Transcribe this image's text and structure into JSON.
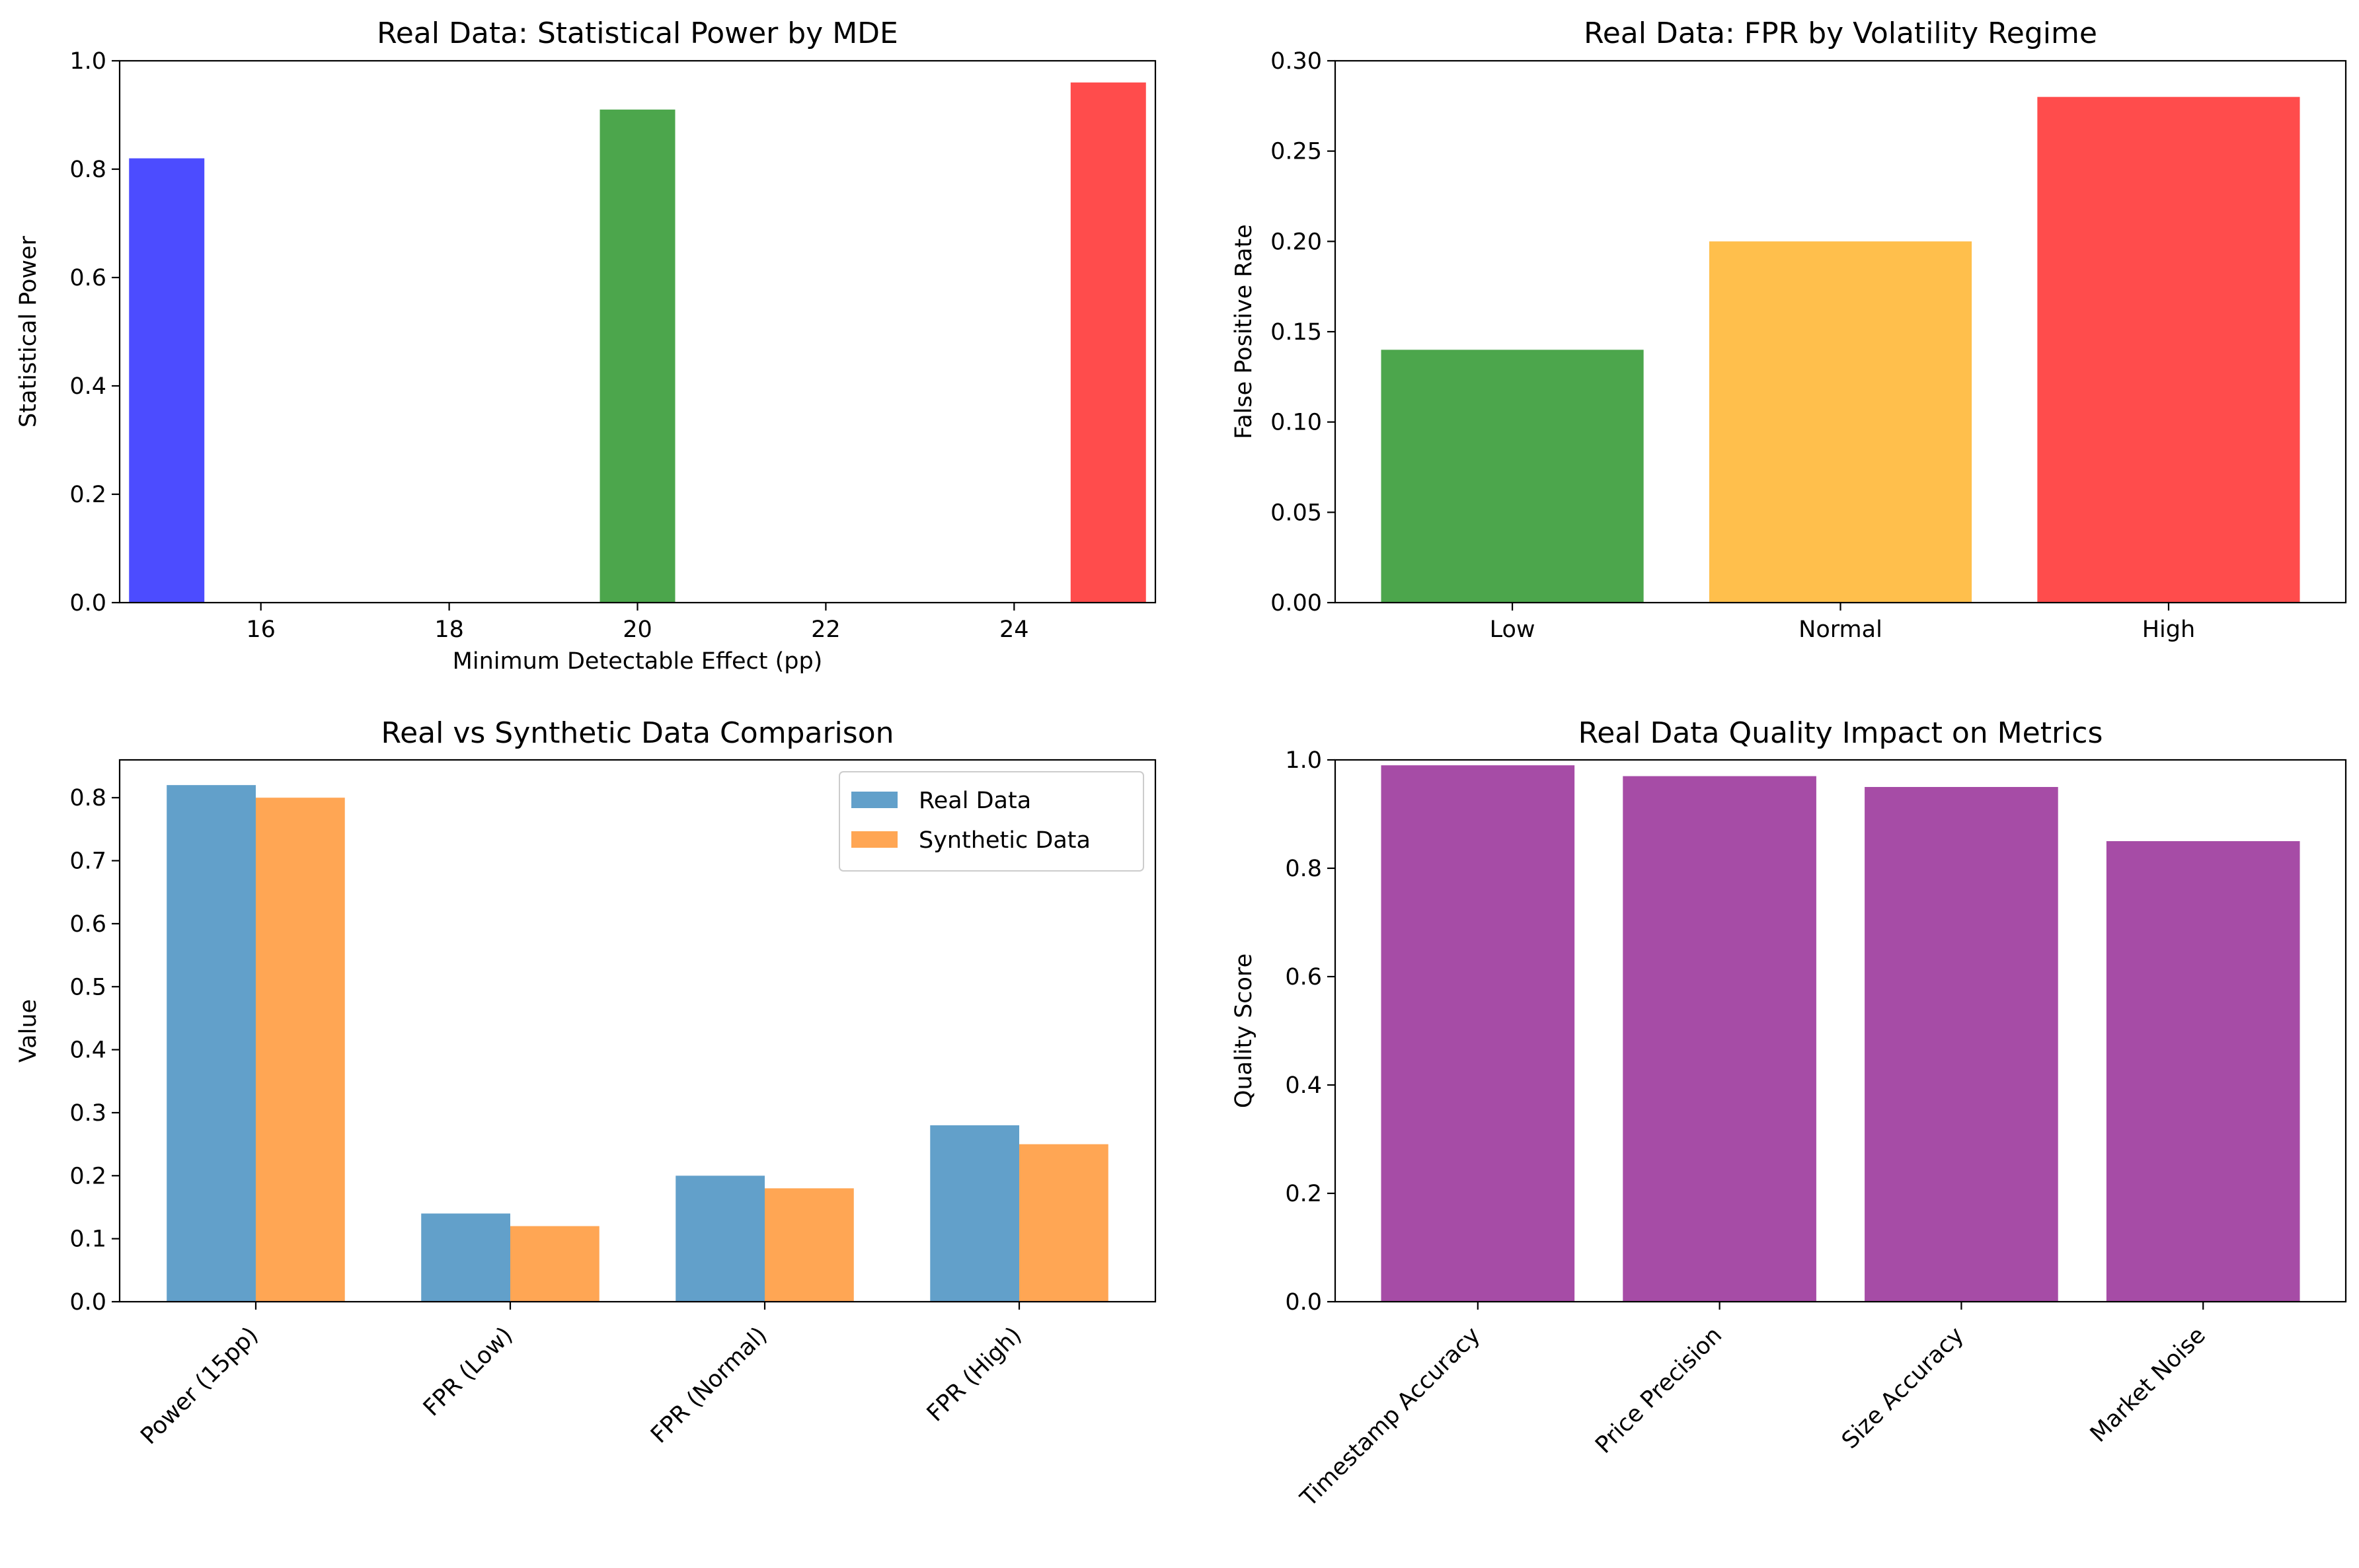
{
  "chart_data": [
    {
      "type": "bar",
      "title": "Real Data: Statistical Power by MDE",
      "xlabel": "Minimum Detectable Effect (pp)",
      "ylabel": "Statistical Power",
      "x": [
        15,
        20,
        25
      ],
      "values": [
        0.82,
        0.91,
        0.96
      ],
      "colors": [
        "#4c4cff",
        "#4ca64c",
        "#ff4c4c"
      ],
      "bar_width": 0.8,
      "xlim": [
        14.5,
        25.5
      ],
      "ylim": [
        0,
        1.0
      ],
      "xticks": [
        16,
        18,
        20,
        22,
        24
      ],
      "xtick_labels": [
        "16",
        "18",
        "20",
        "22",
        "24"
      ],
      "yticks": [
        0,
        0.2,
        0.4,
        0.6,
        0.8,
        1.0
      ],
      "ytick_labels": [
        "0.0",
        "0.2",
        "0.4",
        "0.6",
        "0.8",
        "1.0"
      ],
      "grid": false
    },
    {
      "type": "bar",
      "title": "Real Data: FPR by Volatility Regime",
      "xlabel": "",
      "ylabel": "False Positive Rate",
      "categories": [
        "Low",
        "Normal",
        "High"
      ],
      "values": [
        0.14,
        0.2,
        0.28
      ],
      "colors": [
        "#4ca64c",
        "#ffbf4c",
        "#ff4c4c"
      ],
      "bar_width": 0.8,
      "ylim": [
        0,
        0.3
      ],
      "yticks": [
        0,
        0.05,
        0.1,
        0.15,
        0.2,
        0.25,
        0.3
      ],
      "ytick_labels": [
        "0.00",
        "0.05",
        "0.10",
        "0.15",
        "0.20",
        "0.25",
        "0.30"
      ],
      "grid": false
    },
    {
      "type": "bar",
      "title": "Real vs Synthetic Data Comparison",
      "xlabel": "",
      "ylabel": "Value",
      "categories": [
        "Power (15pp)",
        "FPR (Low)",
        "FPR (Normal)",
        "FPR (High)"
      ],
      "series": [
        {
          "name": "Real Data",
          "values": [
            0.82,
            0.14,
            0.2,
            0.28
          ],
          "color": "#62a0ca"
        },
        {
          "name": "Synthetic Data",
          "values": [
            0.8,
            0.12,
            0.18,
            0.25
          ],
          "color": "#ffa654"
        }
      ],
      "bar_width": 0.35,
      "ylim": [
        0,
        0.86
      ],
      "yticks": [
        0,
        0.1,
        0.2,
        0.3,
        0.4,
        0.5,
        0.6,
        0.7,
        0.8
      ],
      "ytick_labels": [
        "0.0",
        "0.1",
        "0.2",
        "0.3",
        "0.4",
        "0.5",
        "0.6",
        "0.7",
        "0.8"
      ],
      "legend": "top-right",
      "grid": false
    },
    {
      "type": "bar",
      "title": "Real Data Quality Impact on Metrics",
      "xlabel": "",
      "ylabel": "Quality Score",
      "categories": [
        "Timestamp Accuracy",
        "Price Precision",
        "Size Accuracy",
        "Market Noise"
      ],
      "values": [
        0.99,
        0.97,
        0.95,
        0.85
      ],
      "colors": [
        "#a64ca6",
        "#a64ca6",
        "#a64ca6",
        "#a64ca6"
      ],
      "bar_width": 0.8,
      "ylim": [
        0,
        1.0
      ],
      "yticks": [
        0,
        0.2,
        0.4,
        0.6,
        0.8,
        1.0
      ],
      "ytick_labels": [
        "0.0",
        "0.2",
        "0.4",
        "0.6",
        "0.8",
        "1.0"
      ],
      "grid": false
    }
  ]
}
